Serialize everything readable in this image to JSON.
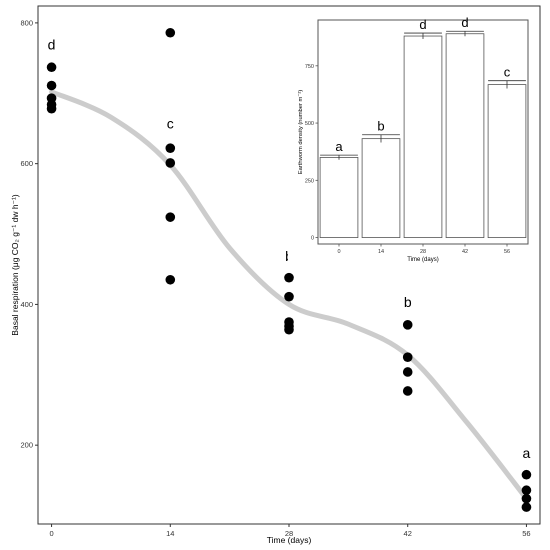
{
  "chart_data": [
    {
      "type": "scatter",
      "xlabel": "Time (days)",
      "ylabel": "Basal respiration (μg CO₂ g⁻¹ dw h⁻¹)",
      "xlim": [
        -1.6,
        57.6
      ],
      "ylim": [
        88,
        824
      ],
      "x_ticks": [
        0,
        14,
        28,
        42,
        56
      ],
      "y_ticks": [
        200,
        400,
        600,
        800
      ],
      "grid": false,
      "points": [
        {
          "x": 0,
          "y": 737
        },
        {
          "x": 0,
          "y": 711
        },
        {
          "x": 0,
          "y": 693
        },
        {
          "x": 0,
          "y": 684
        },
        {
          "x": 0,
          "y": 678
        },
        {
          "x": 14,
          "y": 786
        },
        {
          "x": 14,
          "y": 622
        },
        {
          "x": 14,
          "y": 601
        },
        {
          "x": 14,
          "y": 524
        },
        {
          "x": 14,
          "y": 435
        },
        {
          "x": 28,
          "y": 438
        },
        {
          "x": 28,
          "y": 411
        },
        {
          "x": 28,
          "y": 375
        },
        {
          "x": 28,
          "y": 369
        },
        {
          "x": 28,
          "y": 364
        },
        {
          "x": 42,
          "y": 371
        },
        {
          "x": 42,
          "y": 325
        },
        {
          "x": 42,
          "y": 304
        },
        {
          "x": 42,
          "y": 277
        },
        {
          "x": 56,
          "y": 158
        },
        {
          "x": 56,
          "y": 136
        },
        {
          "x": 56,
          "y": 124
        },
        {
          "x": 56,
          "y": 112
        }
      ],
      "smooth_line": {
        "color": "#cccccc",
        "x": [
          0,
          7,
          14,
          21,
          28,
          35,
          42,
          49,
          56
        ],
        "y": [
          702,
          666,
          598,
          480,
          400,
          372,
          328,
          232,
          124
        ]
      },
      "annotations": [
        {
          "x": 0,
          "y": 762,
          "text": "d"
        },
        {
          "x": 14,
          "y": 650,
          "text": "c"
        },
        {
          "x": 28,
          "y": 462,
          "text": "b"
        },
        {
          "x": 42,
          "y": 396,
          "text": "b"
        },
        {
          "x": 56,
          "y": 182,
          "text": "a"
        }
      ]
    },
    {
      "type": "bar",
      "xlabel": "Time (days)",
      "ylabel": "Earthworm density (number m⁻²)",
      "categories": [
        "0",
        "14",
        "28",
        "42",
        "56"
      ],
      "values": [
        350,
        432,
        880,
        890,
        668
      ],
      "errors": [
        10,
        17,
        13,
        11,
        17
      ],
      "y_ticks": [
        0,
        250,
        500,
        750
      ],
      "ylim": [
        -28,
        950
      ],
      "bar_color": "#ffffff",
      "edge_color": "#555555",
      "grid": false,
      "annotations": [
        "a",
        "b",
        "d",
        "d",
        "c"
      ]
    }
  ]
}
